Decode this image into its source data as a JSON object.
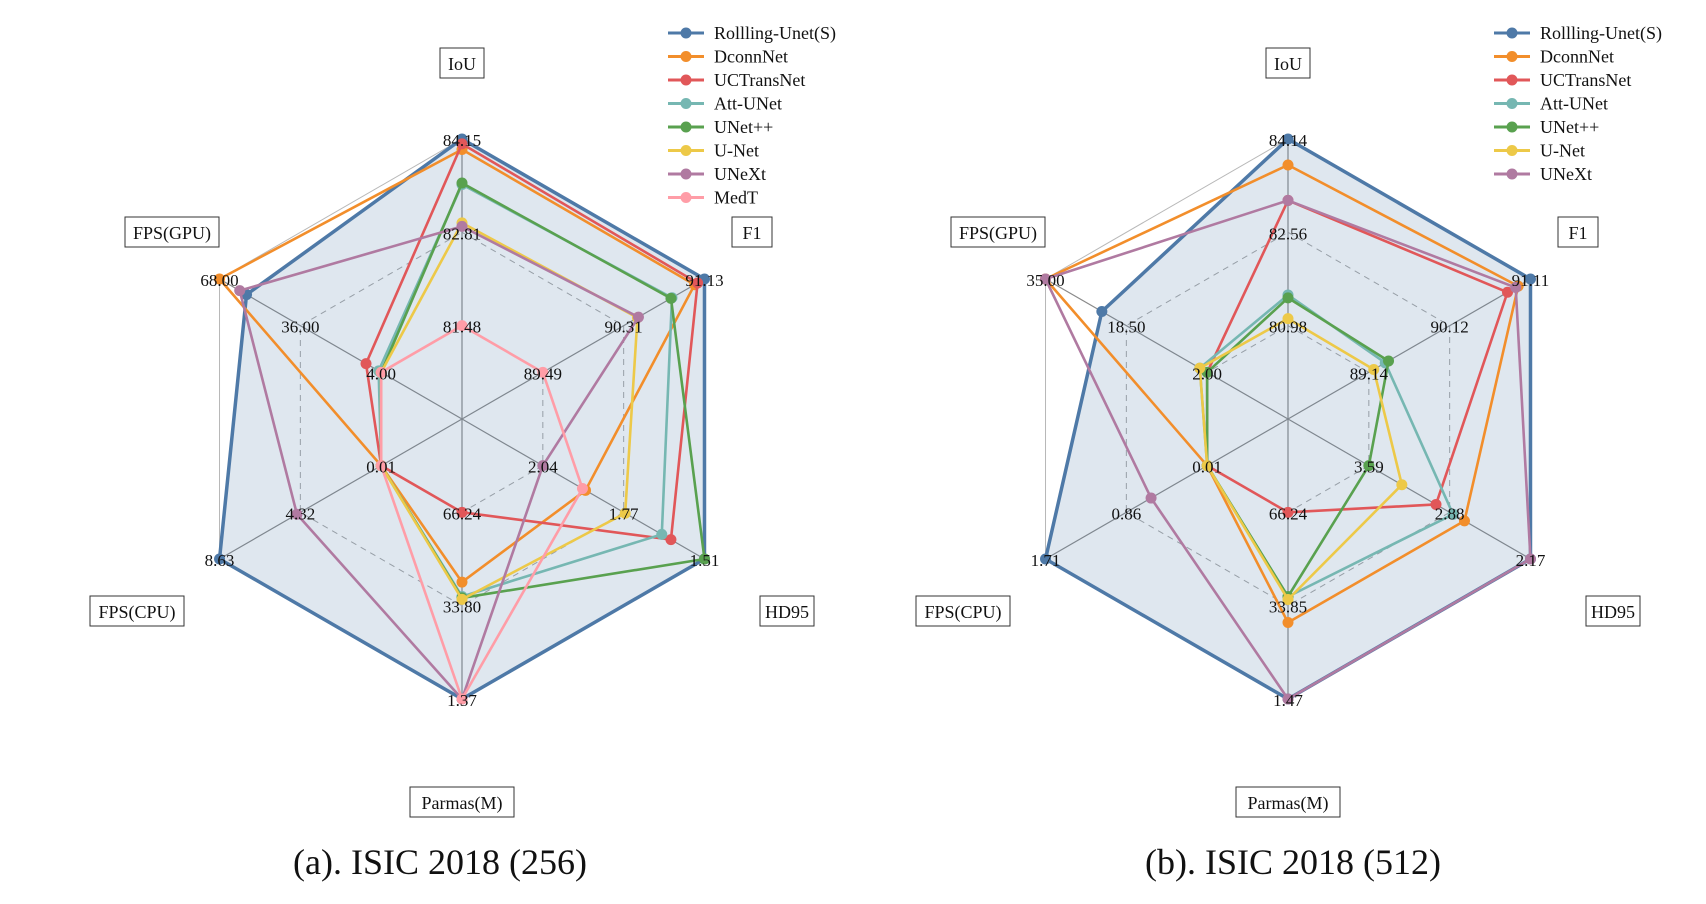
{
  "chart_data": [
    {
      "type": "radar",
      "caption": "(a). ISIC 2018 (256)",
      "axes": [
        {
          "label": "IoU",
          "ticks": [
            "84.15",
            "82.81",
            "81.48"
          ]
        },
        {
          "label": "F1",
          "ticks": [
            "91.13",
            "90.31",
            "89.49"
          ]
        },
        {
          "label": "HD95",
          "ticks": [
            "1.51",
            "1.77",
            "2.04"
          ]
        },
        {
          "label": "Parmas(M)",
          "ticks": [
            "1.37",
            "33.80",
            "66.24"
          ]
        },
        {
          "label": "FPS(CPU)",
          "ticks": [
            "8.63",
            "4.32",
            "0.01"
          ]
        },
        {
          "label": "FPS(GPU)",
          "ticks": [
            "68.00",
            "36.00",
            "4.00"
          ]
        }
      ],
      "legend_position": "top-right",
      "series": [
        {
          "name": "Rollling-Unet(S)",
          "color": "#4e79a7",
          "fill": true,
          "values": [
            84.15,
            91.13,
            1.51,
            1.37,
            8.63,
            57.3
          ]
        },
        {
          "name": "DconnNet",
          "color": "#f28e2b",
          "values": [
            84.0,
            91.03,
            1.9,
            42.0,
            0.01,
            68.0
          ]
        },
        {
          "name": "UCTransNet",
          "color": "#e15759",
          "values": [
            84.08,
            91.06,
            1.62,
            66.24,
            0.01,
            10.0
          ]
        },
        {
          "name": "Att-UNet",
          "color": "#76b7b2",
          "values": [
            83.5,
            90.8,
            1.65,
            37.0,
            0.01,
            5.0
          ]
        },
        {
          "name": "UNet++",
          "color": "#59a14f",
          "values": [
            83.52,
            90.79,
            1.51,
            36.5,
            0.01,
            4.0
          ]
        },
        {
          "name": "U-Net",
          "color": "#edc948",
          "values": [
            82.95,
            90.45,
            1.77,
            36.0,
            0.01,
            4.0
          ]
        },
        {
          "name": "UNeXt",
          "color": "#b07aa1",
          "values": [
            82.9,
            90.46,
            2.04,
            1.37,
            4.5,
            60.0
          ]
        },
        {
          "name": "MedT",
          "color": "#ff9da7",
          "values": [
            81.48,
            89.49,
            1.91,
            1.37,
            0.01,
            4.0
          ]
        }
      ]
    },
    {
      "type": "radar",
      "caption": "(b). ISIC 2018 (512)",
      "axes": [
        {
          "label": "IoU",
          "ticks": [
            "84.14",
            "82.56",
            "80.98"
          ]
        },
        {
          "label": "F1",
          "ticks": [
            "91.11",
            "90.12",
            "89.14"
          ]
        },
        {
          "label": "HD95",
          "ticks": [
            "2.17",
            "2.88",
            "3.59"
          ]
        },
        {
          "label": "Parmas(M)",
          "ticks": [
            "1.47",
            "33.85",
            "66.24"
          ]
        },
        {
          "label": "FPS(CPU)",
          "ticks": [
            "1.71",
            "0.86",
            "0.01"
          ]
        },
        {
          "label": "FPS(GPU)",
          "ticks": [
            "35.00",
            "18.50",
            "2.00"
          ]
        }
      ],
      "legend_position": "top-right",
      "series": [
        {
          "name": "Rollling-Unet(S)",
          "color": "#4e79a7",
          "fill": true,
          "values": [
            84.14,
            91.11,
            2.17,
            1.47,
            1.71,
            23.5
          ]
        },
        {
          "name": "DconnNet",
          "color": "#f28e2b",
          "values": [
            83.7,
            90.96,
            2.75,
            28.0,
            0.01,
            35.0
          ]
        },
        {
          "name": "UCTransNet",
          "color": "#e15759",
          "values": [
            83.1,
            90.83,
            3.0,
            66.24,
            0.01,
            2.0
          ]
        },
        {
          "name": "Att-UNet",
          "color": "#76b7b2",
          "values": [
            81.5,
            89.34,
            2.85,
            37.0,
            0.01,
            3.5
          ]
        },
        {
          "name": "UNet++",
          "color": "#59a14f",
          "values": [
            81.45,
            89.38,
            3.59,
            37.0,
            0.01,
            2.0
          ]
        },
        {
          "name": "U-Net",
          "color": "#edc948",
          "values": [
            81.1,
            89.2,
            3.3,
            36.0,
            0.01,
            3.5
          ]
        },
        {
          "name": "UNeXt",
          "color": "#b07aa1",
          "values": [
            83.1,
            90.93,
            2.17,
            1.47,
            0.6,
            35.0
          ]
        }
      ]
    }
  ]
}
